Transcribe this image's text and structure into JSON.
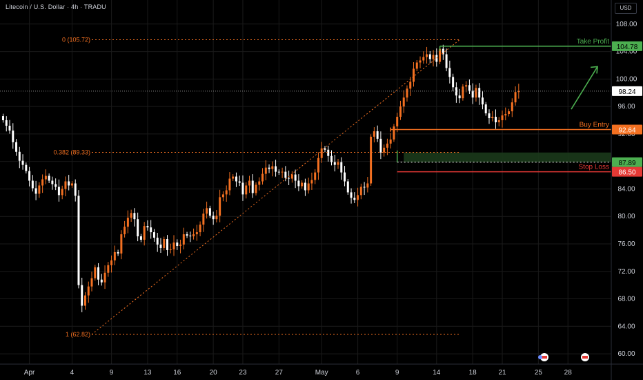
{
  "header": {
    "title": "Litecoin / U.S. Dollar · 4h · TRADU",
    "currency_button": "USD"
  },
  "colors": {
    "background": "#000000",
    "grid": "#1a1a1a",
    "axis_text": "#d1d4dc",
    "candle_up": "#f37021",
    "candle_down": "#ffffff",
    "fib": "#f37021",
    "take_profit": "#4caf50",
    "buy_entry": "#f37021",
    "stop_loss": "#e53935",
    "entry_zone": "#1b3a1b",
    "arrow": "#4caf50",
    "current_price_bg": "#ffffff"
  },
  "chart_data": {
    "type": "candlestick",
    "title": "Litecoin / U.S. Dollar · 4h · TRADU",
    "ylabel": "USD",
    "ylim": [
      58.5,
      111.5
    ],
    "y_ticks": [
      60.0,
      64.0,
      68.0,
      72.0,
      76.0,
      80.0,
      84.0,
      88.0,
      92.0,
      96.0,
      100.0,
      104.0,
      108.0
    ],
    "x_ticks": [
      {
        "label": "Apr",
        "bar": 8
      },
      {
        "label": "4",
        "bar": 21
      },
      {
        "label": "9",
        "bar": 33
      },
      {
        "label": "13",
        "bar": 44
      },
      {
        "label": "16",
        "bar": 53
      },
      {
        "label": "20",
        "bar": 64
      },
      {
        "label": "23",
        "bar": 73
      },
      {
        "label": "27",
        "bar": 84
      },
      {
        "label": "May",
        "bar": 97
      },
      {
        "label": "6",
        "bar": 108
      },
      {
        "label": "9",
        "bar": 120
      },
      {
        "label": "14",
        "bar": 132
      },
      {
        "label": "18",
        "bar": 143
      },
      {
        "label": "21",
        "bar": 152
      },
      {
        "label": "25",
        "bar": 163
      },
      {
        "label": "28",
        "bar": 172
      }
    ],
    "close": [
      94,
      93.2,
      92.5,
      90.8,
      89.4,
      88.1,
      87.5,
      86.6,
      85.2,
      84.1,
      83.3,
      84.5,
      85.4,
      85.9,
      85.2,
      84.7,
      84.3,
      83.1,
      84,
      85.1,
      84.5,
      84.8,
      83,
      70,
      67,
      68.5,
      69.8,
      71,
      72.6,
      70.8,
      70.4,
      71.8,
      72.9,
      73.6,
      74.8,
      74.6,
      77.4,
      78.5,
      79.8,
      80.5,
      79.6,
      77.1,
      76.6,
      78.6,
      78.4,
      77.7,
      76.9,
      75.9,
      75.4,
      76.7,
      75.1,
      75.2,
      76.2,
      75.7,
      75.9,
      77.4,
      77.2,
      77.1,
      77.4,
      77.7,
      78.8,
      80.4,
      81.2,
      80.1,
      79.6,
      80.1,
      82.8,
      83.2,
      83.8,
      85.5,
      85.8,
      85.1,
      84.9,
      83.2,
      84.5,
      85.2,
      83.4,
      84.6,
      85.1,
      86.2,
      87.1,
      86.9,
      87.3,
      86.5,
      86.4,
      86.5,
      85.6,
      85.5,
      86.1,
      85.2,
      84.4,
      84.9,
      83.8,
      84.8,
      85.3,
      86.4,
      88.5,
      89.9,
      89.7,
      88.8,
      87.9,
      87.5,
      87.9,
      86.4,
      85.1,
      83.5,
      82.7,
      82.4,
      83.1,
      84.3,
      84.2,
      84.8,
      91.6,
      92.4,
      91.3,
      89.3,
      90,
      90.6,
      91.2,
      93.1,
      94.5,
      96,
      97.3,
      98.6,
      99.6,
      101.5,
      102.4,
      102.7,
      103.2,
      103.6,
      102.9,
      103.5,
      102.5,
      104.4,
      103.6,
      101.6,
      100.3,
      98.8,
      97.6,
      97.2,
      98.9,
      99.1,
      98.3,
      97.3,
      98.7,
      97.3,
      96.3,
      95,
      94.3,
      94.5,
      93.7,
      94,
      94.7,
      94.9,
      95.3,
      96.6,
      98.1,
      98.24
    ],
    "buy_entry": 92.64,
    "take_profit": 104.78,
    "stop_loss": 86.5,
    "current_price": 98.24,
    "zone_price": 87.89,
    "fibonacci": [
      {
        "label": "0 (105.72)",
        "value": 105.72
      },
      {
        "label": "0.382 (89.33)",
        "value": 89.33
      },
      {
        "label": "1 (62.82)",
        "value": 62.82
      }
    ],
    "annotations": {
      "take_profit_label": "Take Profit",
      "buy_entry_label": "Buy Entry",
      "stop_loss_label": "Stop Loss"
    },
    "price_badges": [
      "104.78",
      "98.24",
      "92.64",
      "87.89",
      "86.50"
    ]
  }
}
